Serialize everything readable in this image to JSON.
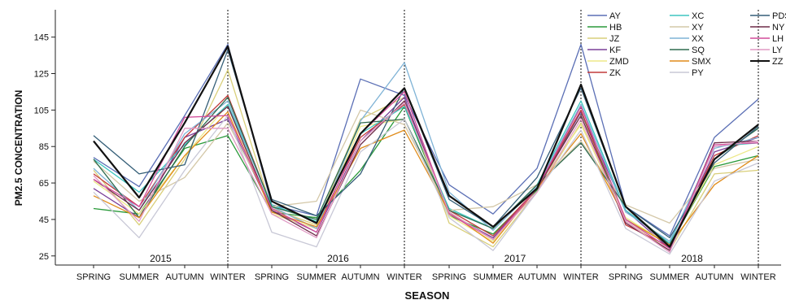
{
  "chart_data": {
    "type": "line",
    "xlabel": "SEASON",
    "ylabel": "PM2.5 CONCENTRATION",
    "ylim": [
      20,
      160
    ],
    "yticks": [
      25,
      45,
      65,
      85,
      105,
      125,
      145
    ],
    "grid": false,
    "legend_position": "top-right",
    "x": [
      "SPRING",
      "SUMMER",
      "AUTUMN",
      "WINTER",
      "SPRING",
      "SUMMER",
      "AUTUMN",
      "WINTER",
      "SPRING",
      "SUMMER",
      "AUTUMN",
      "WINTER",
      "SPRING",
      "SUMMER",
      "AUTUMN",
      "WINTER"
    ],
    "year_labels": [
      "2015",
      "2016",
      "2017",
      "2018"
    ],
    "series": [
      {
        "name": "AY",
        "color": "#5b6fb5",
        "values": [
          79,
          63,
          102,
          141,
          53,
          47,
          122,
          113,
          64,
          48,
          73,
          141,
          52,
          36,
          90,
          111
        ]
      },
      {
        "name": "HB",
        "color": "#2a9a3a",
        "values": [
          51,
          48,
          84,
          91,
          49,
          46,
          72,
          107,
          47,
          37,
          61,
          104,
          45,
          31,
          74,
          80
        ]
      },
      {
        "name": "JZ",
        "color": "#d9cf7a",
        "values": [
          72,
          42,
          78,
          127,
          51,
          42,
          100,
          112,
          43,
          30,
          60,
          98,
          44,
          28,
          70,
          72
        ]
      },
      {
        "name": "KF",
        "color": "#7a3e98",
        "values": [
          62,
          46,
          90,
          100,
          50,
          38,
          88,
          112,
          48,
          35,
          62,
          104,
          50,
          29,
          82,
          90
        ]
      },
      {
        "name": "ZMD",
        "color": "#ede888",
        "values": [
          66,
          48,
          80,
          108,
          48,
          40,
          96,
          100,
          47,
          33,
          63,
          97,
          46,
          31,
          75,
          85
        ]
      },
      {
        "name": "ZK",
        "color": "#c23a3a",
        "values": [
          70,
          52,
          90,
          113,
          52,
          40,
          90,
          108,
          50,
          36,
          62,
          105,
          42,
          30,
          80,
          91
        ]
      },
      {
        "name": "XC",
        "color": "#3ec6c0",
        "values": [
          78,
          60,
          86,
          108,
          53,
          44,
          92,
          107,
          51,
          40,
          64,
          110,
          50,
          32,
          85,
          87
        ]
      },
      {
        "name": "XY",
        "color": "#d4c8a8",
        "values": [
          77,
          55,
          68,
          98,
          52,
          55,
          105,
          97,
          50,
          52,
          64,
          88,
          53,
          43,
          73,
          78
        ]
      },
      {
        "name": "XX",
        "color": "#7fb3d6",
        "values": [
          73,
          50,
          92,
          110,
          52,
          40,
          99,
          131,
          60,
          39,
          63,
          108,
          49,
          33,
          84,
          90
        ]
      },
      {
        "name": "SQ",
        "color": "#2f6b4f",
        "values": [
          78,
          46,
          85,
          112,
          52,
          45,
          98,
          100,
          50,
          40,
          64,
          87,
          52,
          31,
          78,
          95
        ]
      },
      {
        "name": "SMX",
        "color": "#e08c1a",
        "values": [
          58,
          46,
          80,
          104,
          49,
          41,
          84,
          94,
          49,
          32,
          62,
          92,
          45,
          31,
          64,
          80
        ]
      },
      {
        "name": "PY",
        "color": "#c8c8d6",
        "values": [
          60,
          35,
          72,
          102,
          38,
          30,
          82,
          100,
          46,
          28,
          60,
          94,
          40,
          26,
          66,
          76
        ]
      },
      {
        "name": "PDS",
        "color": "#355f78",
        "values": [
          91,
          70,
          75,
          138,
          56,
          47,
          70,
          117,
          56,
          41,
          68,
          117,
          52,
          35,
          76,
          96
        ]
      },
      {
        "name": "NY",
        "color": "#6e2b48",
        "values": [
          67,
          50,
          87,
          107,
          50,
          36,
          86,
          110,
          49,
          34,
          62,
          102,
          43,
          28,
          87,
          88
        ]
      },
      {
        "name": "LH",
        "color": "#d24c9a",
        "values": [
          67,
          52,
          101,
          102,
          51,
          38,
          92,
          115,
          48,
          34,
          62,
          107,
          45,
          29,
          86,
          87
        ]
      },
      {
        "name": "LY",
        "color": "#e19ac4",
        "values": [
          69,
          44,
          95,
          95,
          48,
          35,
          88,
          109,
          49,
          34,
          60,
          100,
          44,
          27,
          85,
          88
        ]
      },
      {
        "name": "ZZ",
        "color": "#111111",
        "values": [
          88,
          57,
          98,
          140,
          55,
          43,
          92,
          117,
          58,
          41,
          62,
          119,
          52,
          30,
          78,
          97
        ]
      }
    ]
  }
}
